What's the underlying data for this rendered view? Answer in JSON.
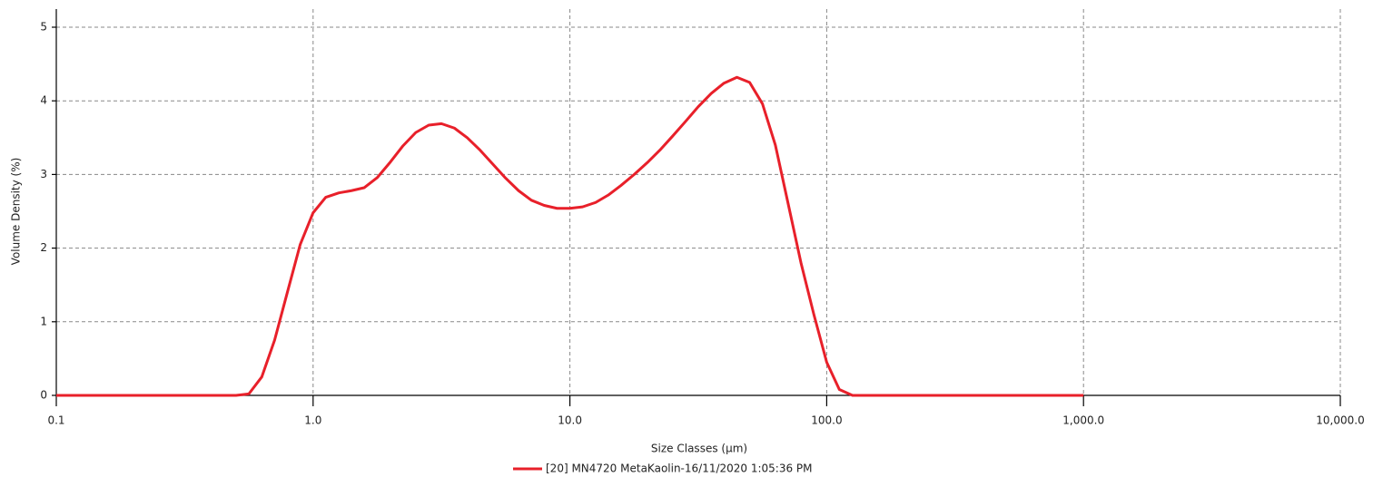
{
  "chart_data": {
    "type": "line",
    "x_label": "Size Classes (µm)",
    "y_label": "Volume Density (%)",
    "log_x": true,
    "grid": true,
    "xlim": [
      0.1,
      10000
    ],
    "ylim": [
      0,
      5
    ],
    "xticks": [
      0.1,
      {
        "value": 1,
        "label": "1.0"
      },
      {
        "value": 10,
        "label": "10.0"
      },
      {
        "value": 100,
        "label": "100.0"
      },
      {
        "value": 1000,
        "label": "1,000.0"
      },
      {
        "value": 10000,
        "label": "10,000.0"
      }
    ],
    "yticks": [
      0,
      1,
      2,
      3,
      4,
      5
    ],
    "x": [
      0.1,
      0.501,
      0.562,
      0.631,
      0.708,
      0.794,
      0.891,
      1.0,
      1.12,
      1.26,
      1.41,
      1.58,
      1.78,
      2.0,
      2.24,
      2.51,
      2.82,
      3.16,
      3.55,
      3.98,
      4.47,
      5.01,
      5.62,
      6.31,
      7.08,
      7.94,
      8.91,
      10.0,
      11.2,
      12.6,
      14.1,
      15.8,
      17.8,
      20.0,
      22.4,
      25.1,
      28.2,
      31.6,
      35.5,
      39.8,
      44.7,
      50.1,
      56.2,
      63.1,
      70.8,
      79.4,
      89.1,
      100,
      112,
      126,
      1000
    ],
    "series": [
      {
        "name": "[20] MN4720 MetaKaolin-16/11/2020 1:05:36 PM",
        "color": "#e8202a",
        "values": [
          0,
          0,
          0.02,
          0.25,
          0.75,
          1.4,
          2.05,
          2.48,
          2.69,
          2.75,
          2.78,
          2.82,
          2.96,
          3.17,
          3.39,
          3.57,
          3.67,
          3.69,
          3.63,
          3.5,
          3.33,
          3.14,
          2.95,
          2.78,
          2.65,
          2.58,
          2.54,
          2.54,
          2.56,
          2.62,
          2.72,
          2.85,
          3.0,
          3.16,
          3.33,
          3.52,
          3.72,
          3.92,
          4.1,
          4.24,
          4.32,
          4.25,
          3.96,
          3.4,
          2.6,
          1.8,
          1.1,
          0.45,
          0.08,
          0,
          0
        ]
      }
    ]
  }
}
